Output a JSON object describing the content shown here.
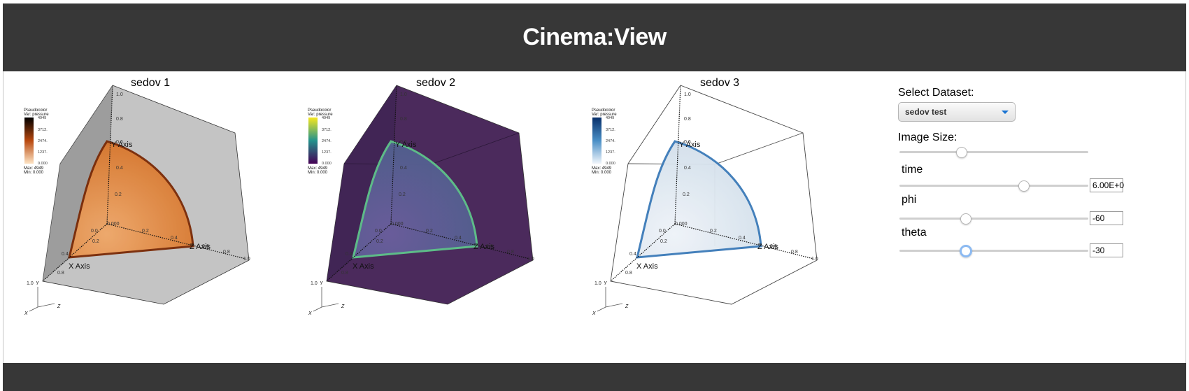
{
  "app": {
    "title": "Cinema:View"
  },
  "views": [
    {
      "title": "sedov 1",
      "colors": {
        "box": "#c4c4c4",
        "box_dark": "#7d7d7d",
        "sphere_light": "#f0a869",
        "sphere_mid": "#d9782e",
        "sphere_edge": "#7a2a06",
        "ramp_top": "#000000",
        "ramp_mid": "#b8480e",
        "ramp_bot": "#fde3c3"
      },
      "box_style": "solid-gray"
    },
    {
      "title": "sedov 2",
      "colors": {
        "box": "#4b2a5c",
        "box_dark": "#3b2150",
        "sphere_light": "#6b5f9e",
        "sphere_mid": "#52608f",
        "sphere_edge": "#5fc48b",
        "ramp_top": "#f6e71f",
        "ramp_mid": "#23928c",
        "ramp_bot": "#440154"
      },
      "box_style": "solid-purple"
    },
    {
      "title": "sedov 3",
      "colors": {
        "box": "#ffffff",
        "box_dark": "#ffffff",
        "sphere_light": "#eef3f8",
        "sphere_mid": "#d4e0ec",
        "sphere_edge": "#3b7ab8",
        "ramp_top": "#08306b",
        "ramp_mid": "#4a8fc6",
        "ramp_bot": "#f1f6fb"
      },
      "box_style": "wireframe"
    }
  ],
  "legend": {
    "title_line1": "Pseudocolor",
    "title_line2": "Var: pressure",
    "ticks": [
      "4949",
      "3712.",
      "2474.",
      "1237.",
      "0.000"
    ],
    "max": "Max: 4949",
    "min": "Min: 0.000"
  },
  "axes": {
    "y_axis_label": "Y Axis",
    "x_axis_label": "X Axis",
    "z_axis_label": "Z Axis",
    "y_ticks": [
      "1.0",
      "0.8",
      "0.6",
      "0.4",
      "0.2",
      "0.000"
    ],
    "x_ticks": [
      "0.2",
      "0.4",
      "0.8",
      "1.0"
    ],
    "z_ticks": [
      "0.2",
      "0.4",
      "0.6",
      "0.8",
      "1.0"
    ],
    "origin": "0.0",
    "triad": {
      "x": "X",
      "y": "Y",
      "z": "Z"
    }
  },
  "controls": {
    "dataset_label": "Select Dataset:",
    "dataset_value": "sedov test",
    "image_size_label": "Image Size:",
    "image_size_level": 0.33,
    "params": [
      {
        "label": "time",
        "value": "6.00E+0",
        "level": 0.66
      },
      {
        "label": "phi",
        "value": "-60",
        "level": 0.35
      },
      {
        "label": "theta",
        "value": "-30",
        "level": 0.35
      }
    ]
  }
}
